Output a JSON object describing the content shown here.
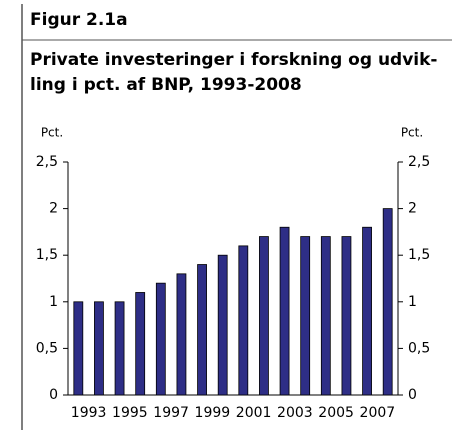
{
  "chart_data": {
    "type": "bar",
    "figure_label": "Figur 2.1a",
    "title": [
      "Private investeringer i forskning og udvik-",
      "ling i pct. af BNP, 1993-2008"
    ],
    "ylabel": "Pct.",
    "y2label": "Pct.",
    "categories": [
      "1993",
      null,
      "1995",
      null,
      "1997",
      null,
      "1999",
      null,
      "2001",
      null,
      "2003",
      null,
      "2005",
      null,
      "2007",
      null
    ],
    "values": [
      1.0,
      1.0,
      1.0,
      1.1,
      1.2,
      1.3,
      1.4,
      1.5,
      1.6,
      1.7,
      1.8,
      1.7,
      1.7,
      1.7,
      1.8,
      2.0
    ],
    "color": "#2e2e86",
    "ylim": [
      0,
      2.5
    ],
    "yticks": [
      0,
      {
        "value": 0.5,
        "label": "0,5"
      },
      1,
      {
        "value": 1.5,
        "label": "1,5"
      },
      2,
      {
        "value": 2.5,
        "label": "2,5"
      }
    ],
    "y2lim": [
      0,
      2.5
    ],
    "y2ticks": [
      0,
      {
        "value": 0.5,
        "label": "0,5"
      },
      1,
      {
        "value": 1.5,
        "label": "1,5"
      },
      2,
      {
        "value": 2.5,
        "label": "2,5"
      }
    ]
  }
}
